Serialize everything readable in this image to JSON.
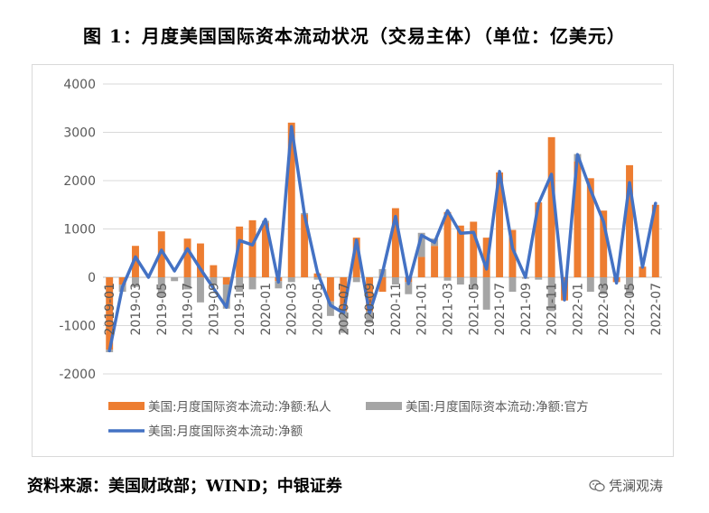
{
  "page": {
    "title": "图 1：月度美国国际资本流动状况（交易主体）（单位：亿美元）",
    "source": "资料来源：美国财政部；WIND；中银证券",
    "watermark": "凭澜观涛"
  },
  "chart_data": {
    "type": "bar",
    "ylim": [
      -2000,
      4000
    ],
    "yticks": [
      4000,
      3000,
      2000,
      1000,
      0,
      -1000,
      -2000
    ],
    "grid": true,
    "legend_position": "bottom",
    "x": [
      "2019-01",
      "2019-02",
      "2019-03",
      "2019-04",
      "2019-05",
      "2019-06",
      "2019-07",
      "2019-08",
      "2019-09",
      "2019-10",
      "2019-11",
      "2019-12",
      "2020-01",
      "2020-02",
      "2020-03",
      "2020-04",
      "2020-05",
      "2020-06",
      "2020-07",
      "2020-08",
      "2020-09",
      "2020-10",
      "2020-11",
      "2020-12",
      "2021-01",
      "2021-02",
      "2021-03",
      "2021-04",
      "2021-05",
      "2021-06",
      "2021-07",
      "2021-08",
      "2021-09",
      "2021-10",
      "2021-11",
      "2021-12",
      "2022-01",
      "2022-02",
      "2022-03",
      "2022-04",
      "2022-05",
      "2022-06",
      "2022-07"
    ],
    "xtick_labels": [
      "2019-01",
      "2019-03",
      "2019-05",
      "2019-07",
      "2019-09",
      "2019-11",
      "2020-01",
      "2020-03",
      "2020-05",
      "2020-07",
      "2020-09",
      "2020-11",
      "2021-01",
      "2021-03",
      "2021-05",
      "2021-07",
      "2021-09",
      "2021-11",
      "2022-01",
      "2022-03",
      "2022-05",
      "2022-07"
    ],
    "series": [
      {
        "name": "美国:月度国际资本流动:净额:私人",
        "type": "bar",
        "color": "#ED7D31",
        "values": [
          -1500,
          -150,
          650,
          0,
          950,
          0,
          800,
          700,
          250,
          -150,
          1050,
          1180,
          1120,
          -80,
          3200,
          1300,
          80,
          -500,
          -700,
          820,
          -700,
          -300,
          1430,
          -100,
          420,
          650,
          1350,
          1070,
          1150,
          820,
          2170,
          980,
          0,
          1550,
          2900,
          -480,
          2400,
          2050,
          1380,
          -100,
          2320,
          220,
          1500
        ]
      },
      {
        "name": "美国:月度国际资本流动:净额:官方",
        "type": "bar",
        "color": "#A5A5A5",
        "values": [
          -50,
          -150,
          -200,
          0,
          -400,
          -80,
          -250,
          -520,
          -150,
          -500,
          -300,
          -250,
          50,
          -150,
          -100,
          30,
          -50,
          -300,
          -450,
          -100,
          -250,
          170,
          -150,
          -250,
          500,
          150,
          -70,
          -150,
          -250,
          -670,
          0,
          -300,
          -30,
          -50,
          -700,
          0,
          150,
          -300,
          -350,
          0,
          -380,
          0,
          0
        ]
      },
      {
        "name": "美国:月度国际资本流动:净额",
        "type": "line",
        "color": "#4472C4",
        "values": [
          -1520,
          -200,
          420,
          0,
          560,
          130,
          590,
          170,
          -230,
          -620,
          760,
          670,
          1200,
          -100,
          3120,
          1300,
          100,
          -580,
          -740,
          770,
          -740,
          100,
          1260,
          -130,
          870,
          720,
          1380,
          910,
          930,
          170,
          2190,
          600,
          0,
          1520,
          2130,
          -470,
          2540,
          1810,
          1150,
          -120,
          1960,
          210,
          1530
        ]
      }
    ]
  }
}
